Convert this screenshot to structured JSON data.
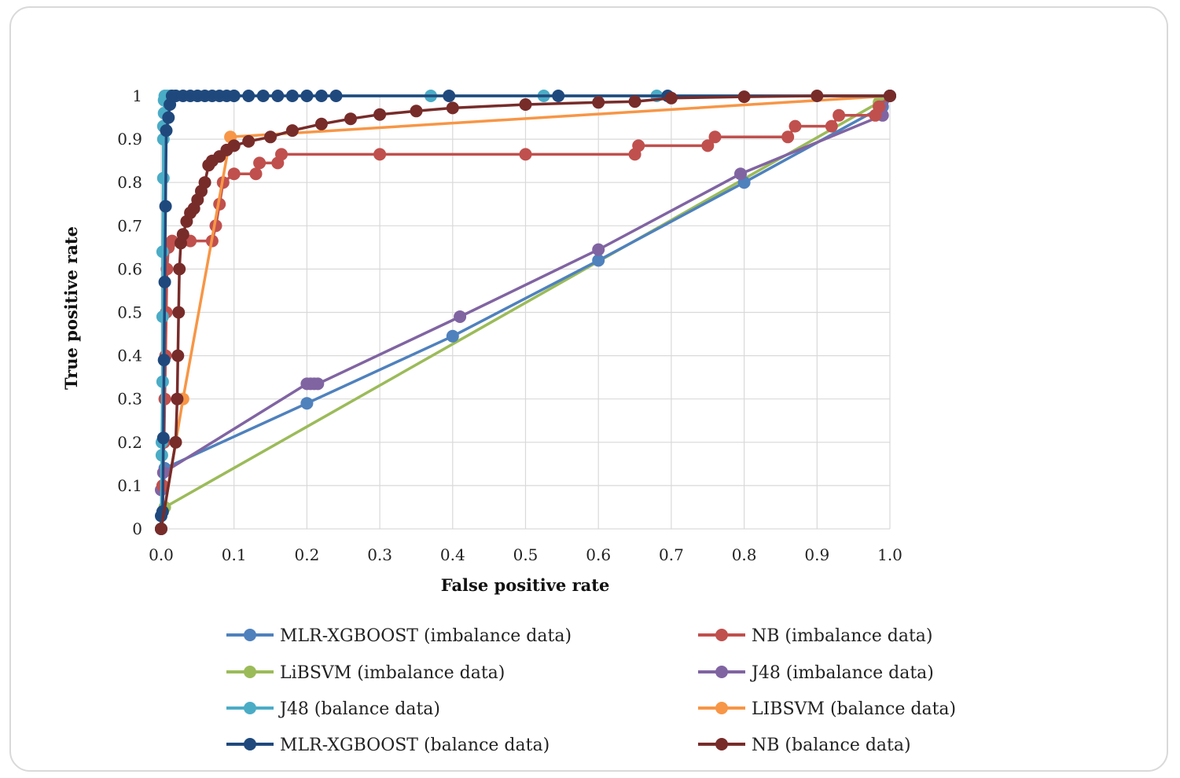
{
  "chart_data": {
    "type": "scatter",
    "title": "",
    "xlabel": "False positive rate",
    "ylabel": "True positive rate",
    "xlim": [
      0,
      1
    ],
    "ylim": [
      0,
      1
    ],
    "grid": true,
    "legend_position": "bottom",
    "x_ticks": [
      "0.0",
      "0.1",
      "0.2",
      "0.3",
      "0.4",
      "0.5",
      "0.6",
      "0.7",
      "0.8",
      "0.9",
      "1.0"
    ],
    "y_ticks": [
      "0",
      "0.1",
      "0.2",
      "0.3",
      "0.4",
      "0.5",
      "0.6",
      "0.7",
      "0.8",
      "0.9",
      "1"
    ],
    "series": [
      {
        "name": "MLR-XGBOOST (imbalance data)",
        "color": "#4f81bd",
        "points": [
          [
            0,
            0
          ],
          [
            0.005,
            0.14
          ],
          [
            0.2,
            0.29
          ],
          [
            0.4,
            0.445
          ],
          [
            0.6,
            0.62
          ],
          [
            0.8,
            0.8
          ],
          [
            0.99,
            0.975
          ],
          [
            1,
            1
          ]
        ]
      },
      {
        "name": "NB (imbalance data)",
        "color": "#c0504d",
        "points": [
          [
            0,
            0
          ],
          [
            0.002,
            0.1
          ],
          [
            0.004,
            0.2
          ],
          [
            0.005,
            0.3
          ],
          [
            0.006,
            0.4
          ],
          [
            0.007,
            0.5
          ],
          [
            0.008,
            0.6
          ],
          [
            0.01,
            0.65
          ],
          [
            0.015,
            0.665
          ],
          [
            0.04,
            0.665
          ],
          [
            0.07,
            0.665
          ],
          [
            0.075,
            0.7
          ],
          [
            0.08,
            0.75
          ],
          [
            0.085,
            0.8
          ],
          [
            0.1,
            0.82
          ],
          [
            0.13,
            0.82
          ],
          [
            0.135,
            0.845
          ],
          [
            0.16,
            0.845
          ],
          [
            0.165,
            0.865
          ],
          [
            0.3,
            0.865
          ],
          [
            0.5,
            0.865
          ],
          [
            0.65,
            0.865
          ],
          [
            0.655,
            0.885
          ],
          [
            0.75,
            0.885
          ],
          [
            0.76,
            0.905
          ],
          [
            0.86,
            0.905
          ],
          [
            0.87,
            0.93
          ],
          [
            0.92,
            0.93
          ],
          [
            0.93,
            0.955
          ],
          [
            0.98,
            0.955
          ],
          [
            0.985,
            0.975
          ],
          [
            1,
            1
          ]
        ]
      },
      {
        "name": "LiBSVM (imbalance data)",
        "color": "#9bbb59",
        "points": [
          [
            0.005,
            0.05
          ],
          [
            0.985,
            0.985
          ],
          [
            1,
            1
          ]
        ]
      },
      {
        "name": "J48 (imbalance data)",
        "color": "#8064a2",
        "points": [
          [
            0,
            0.09
          ],
          [
            0.003,
            0.13
          ],
          [
            0.2,
            0.335
          ],
          [
            0.205,
            0.335
          ],
          [
            0.21,
            0.335
          ],
          [
            0.215,
            0.335
          ],
          [
            0.41,
            0.49
          ],
          [
            0.6,
            0.645
          ],
          [
            0.795,
            0.82
          ],
          [
            0.99,
            0.955
          ],
          [
            1,
            1
          ]
        ]
      },
      {
        "name": "J48 (balance data)",
        "color": "#4bacc6",
        "points": [
          [
            0,
            0
          ],
          [
            0.001,
            0.17
          ],
          [
            0.001,
            0.2
          ],
          [
            0.002,
            0.34
          ],
          [
            0.002,
            0.49
          ],
          [
            0.002,
            0.64
          ],
          [
            0.003,
            0.81
          ],
          [
            0.003,
            0.9
          ],
          [
            0.003,
            0.93
          ],
          [
            0.004,
            0.96
          ],
          [
            0.004,
            0.99
          ],
          [
            0.005,
            1
          ],
          [
            0.008,
            1
          ],
          [
            0.012,
            1
          ],
          [
            0.02,
            1
          ],
          [
            0.05,
            1
          ],
          [
            0.1,
            1
          ],
          [
            0.2,
            1
          ],
          [
            0.37,
            1
          ],
          [
            0.525,
            1
          ],
          [
            0.68,
            1
          ],
          [
            1,
            1
          ]
        ]
      },
      {
        "name": "LIBSVM (balance data)",
        "color": "#f79646",
        "points": [
          [
            0,
            0
          ],
          [
            0.03,
            0.3
          ],
          [
            0.095,
            0.905
          ],
          [
            1,
            1
          ]
        ]
      },
      {
        "name": "MLR-XGBOOST (balance data)",
        "color": "#1f497d",
        "points": [
          [
            0,
            0
          ],
          [
            0,
            0.03
          ],
          [
            0.002,
            0.04
          ],
          [
            0.003,
            0.21
          ],
          [
            0.004,
            0.39
          ],
          [
            0.005,
            0.57
          ],
          [
            0.006,
            0.745
          ],
          [
            0.007,
            0.92
          ],
          [
            0.01,
            0.95
          ],
          [
            0.012,
            0.98
          ],
          [
            0.015,
            1
          ],
          [
            0.02,
            1
          ],
          [
            0.03,
            1
          ],
          [
            0.04,
            1
          ],
          [
            0.05,
            1
          ],
          [
            0.06,
            1
          ],
          [
            0.07,
            1
          ],
          [
            0.08,
            1
          ],
          [
            0.09,
            1
          ],
          [
            0.1,
            1
          ],
          [
            0.12,
            1
          ],
          [
            0.14,
            1
          ],
          [
            0.16,
            1
          ],
          [
            0.18,
            1
          ],
          [
            0.2,
            1
          ],
          [
            0.22,
            1
          ],
          [
            0.24,
            1
          ],
          [
            0.395,
            1
          ],
          [
            0.545,
            1
          ],
          [
            0.695,
            1
          ],
          [
            1,
            1
          ]
        ]
      },
      {
        "name": "NB (balance data)",
        "color": "#772c2a",
        "points": [
          [
            0,
            0
          ],
          [
            0.02,
            0.2
          ],
          [
            0.022,
            0.3
          ],
          [
            0.023,
            0.4
          ],
          [
            0.024,
            0.5
          ],
          [
            0.025,
            0.6
          ],
          [
            0.027,
            0.66
          ],
          [
            0.03,
            0.68
          ],
          [
            0.035,
            0.71
          ],
          [
            0.04,
            0.73
          ],
          [
            0.045,
            0.74
          ],
          [
            0.05,
            0.76
          ],
          [
            0.055,
            0.78
          ],
          [
            0.06,
            0.8
          ],
          [
            0.065,
            0.84
          ],
          [
            0.07,
            0.85
          ],
          [
            0.08,
            0.86
          ],
          [
            0.09,
            0.875
          ],
          [
            0.1,
            0.885
          ],
          [
            0.12,
            0.895
          ],
          [
            0.15,
            0.905
          ],
          [
            0.18,
            0.92
          ],
          [
            0.22,
            0.935
          ],
          [
            0.26,
            0.947
          ],
          [
            0.3,
            0.957
          ],
          [
            0.35,
            0.965
          ],
          [
            0.4,
            0.972
          ],
          [
            0.5,
            0.98
          ],
          [
            0.6,
            0.985
          ],
          [
            0.65,
            0.987
          ],
          [
            0.7,
            0.995
          ],
          [
            0.8,
            0.998
          ],
          [
            0.9,
            1
          ],
          [
            1,
            1
          ]
        ]
      }
    ]
  }
}
